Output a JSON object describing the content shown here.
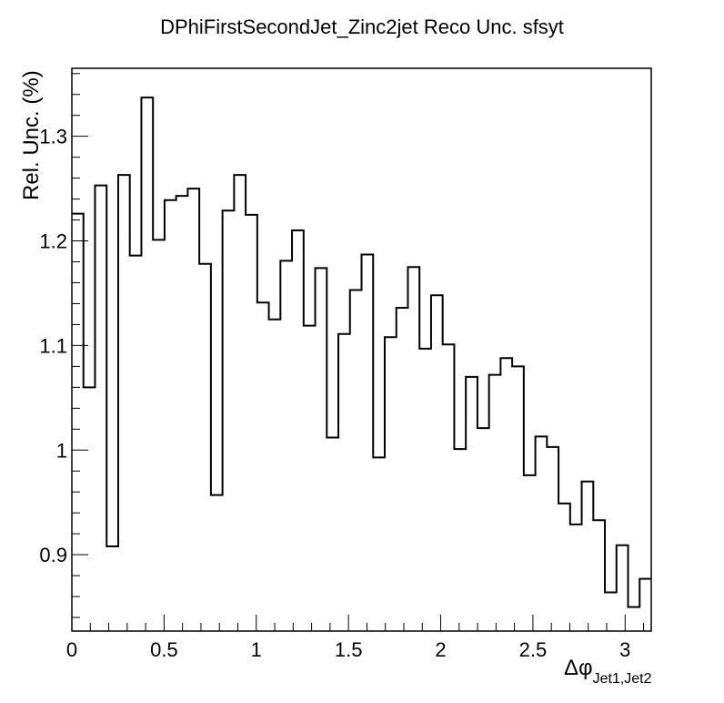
{
  "chart_data": {
    "type": "histogram-step",
    "title": "DPhiFirstSecondJet_Zinc2jet Reco Unc. sfsyt",
    "xlabel": "Δφ",
    "xlabel_subscript": "Jet1,Jet2",
    "ylabel": "Rel. Unc. (%)",
    "xlim": [
      0,
      3.1416
    ],
    "ylim": [
      0.827,
      1.365
    ],
    "x_major_ticks": [
      0,
      0.5,
      1,
      1.5,
      2,
      2.5,
      3
    ],
    "x_tick_labels": [
      "0",
      "0.5",
      "1",
      "1.5",
      "2",
      "2.5",
      "3"
    ],
    "y_major_ticks": [
      0.9,
      1.0,
      1.1,
      1.2,
      1.3
    ],
    "y_tick_labels": [
      "0.9",
      "1",
      "1.1",
      "1.2",
      "1.3"
    ],
    "bin_count": 50,
    "values": [
      1.226,
      1.06,
      1.253,
      0.908,
      1.263,
      1.186,
      1.337,
      1.201,
      1.239,
      1.243,
      1.25,
      1.178,
      0.957,
      1.229,
      1.263,
      1.225,
      1.141,
      1.125,
      1.181,
      1.21,
      1.119,
      1.174,
      1.012,
      1.111,
      1.153,
      1.187,
      0.993,
      1.108,
      1.136,
      1.175,
      1.097,
      1.148,
      1.101,
      1.001,
      1.07,
      1.021,
      1.072,
      1.088,
      1.08,
      0.976,
      1.013,
      1.003,
      0.949,
      0.929,
      0.97,
      0.933,
      0.864,
      0.909,
      0.85,
      0.877
    ],
    "line_color": "#000000",
    "grid": false,
    "legend": "none"
  }
}
